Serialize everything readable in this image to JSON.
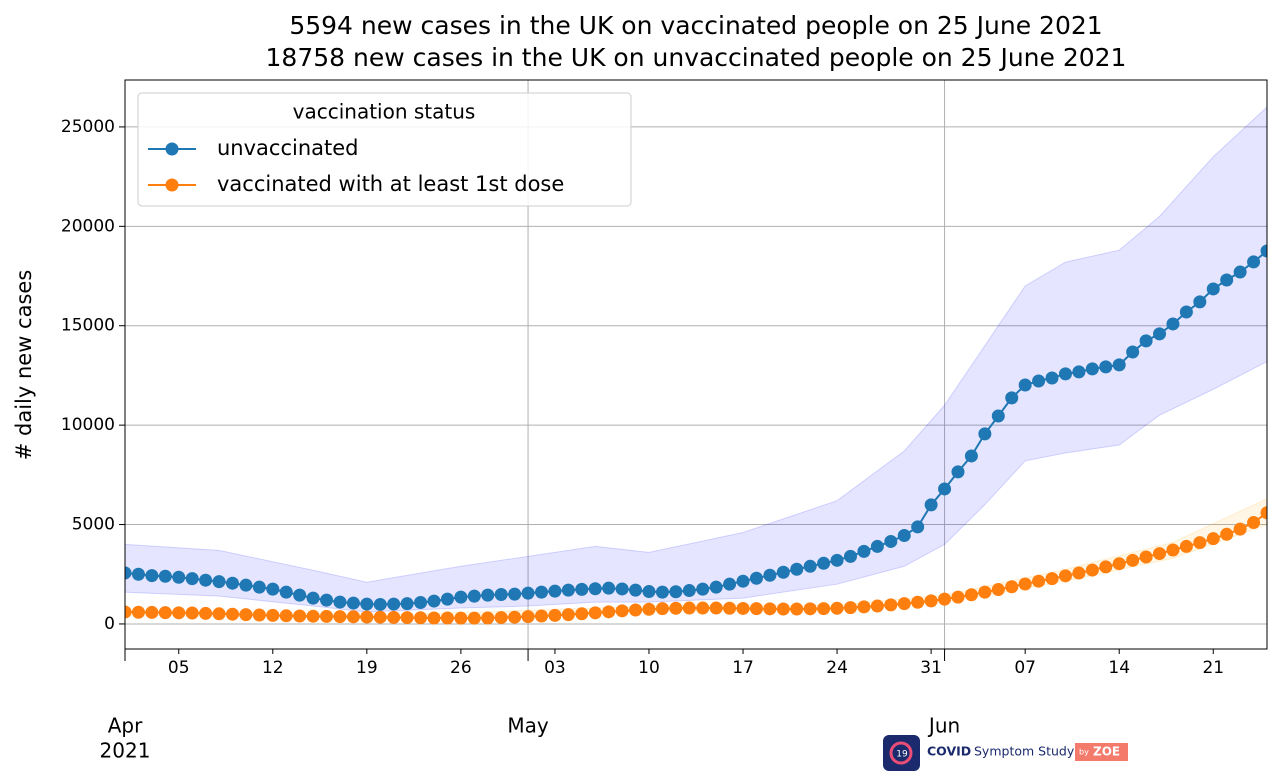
{
  "chart_data": {
    "type": "line",
    "title": [
      "5594 new cases in the UK on vaccinated people on 25 June 2021",
      "18758 new cases in the UK on unvaccinated people on 25 June 2021"
    ],
    "ylabel": "# daily new cases",
    "x": [
      "2021-04-01",
      "2021-04-02",
      "2021-04-03",
      "2021-04-04",
      "2021-04-05",
      "2021-04-06",
      "2021-04-07",
      "2021-04-08",
      "2021-04-09",
      "2021-04-10",
      "2021-04-11",
      "2021-04-12",
      "2021-04-13",
      "2021-04-14",
      "2021-04-15",
      "2021-04-16",
      "2021-04-17",
      "2021-04-18",
      "2021-04-19",
      "2021-04-20",
      "2021-04-21",
      "2021-04-22",
      "2021-04-23",
      "2021-04-24",
      "2021-04-25",
      "2021-04-26",
      "2021-04-27",
      "2021-04-28",
      "2021-04-29",
      "2021-04-30",
      "2021-05-01",
      "2021-05-02",
      "2021-05-03",
      "2021-05-04",
      "2021-05-05",
      "2021-05-06",
      "2021-05-07",
      "2021-05-08",
      "2021-05-09",
      "2021-05-10",
      "2021-05-11",
      "2021-05-12",
      "2021-05-13",
      "2021-05-14",
      "2021-05-15",
      "2021-05-16",
      "2021-05-17",
      "2021-05-18",
      "2021-05-19",
      "2021-05-20",
      "2021-05-21",
      "2021-05-22",
      "2021-05-23",
      "2021-05-24",
      "2021-05-25",
      "2021-05-26",
      "2021-05-27",
      "2021-05-28",
      "2021-05-29",
      "2021-05-30",
      "2021-05-31",
      "2021-06-01",
      "2021-06-02",
      "2021-06-03",
      "2021-06-04",
      "2021-06-05",
      "2021-06-06",
      "2021-06-07",
      "2021-06-08",
      "2021-06-09",
      "2021-06-10",
      "2021-06-11",
      "2021-06-12",
      "2021-06-13",
      "2021-06-14",
      "2021-06-15",
      "2021-06-16",
      "2021-06-17",
      "2021-06-18",
      "2021-06-19",
      "2021-06-20",
      "2021-06-21",
      "2021-06-22",
      "2021-06-23",
      "2021-06-24",
      "2021-06-25"
    ],
    "series": [
      {
        "name": "unvaccinated",
        "color": "#1f77b4",
        "band_color": "#0000ff",
        "values": [
          2565,
          2500,
          2430,
          2400,
          2350,
          2280,
          2200,
          2130,
          2050,
          1950,
          1850,
          1750,
          1600,
          1450,
          1300,
          1200,
          1100,
          1050,
          1000,
          980,
          1000,
          1020,
          1080,
          1150,
          1250,
          1350,
          1400,
          1450,
          1480,
          1500,
          1550,
          1600,
          1650,
          1700,
          1740,
          1770,
          1800,
          1760,
          1700,
          1630,
          1600,
          1620,
          1680,
          1750,
          1850,
          2000,
          2150,
          2300,
          2450,
          2600,
          2750,
          2900,
          3050,
          3200,
          3400,
          3650,
          3900,
          4150,
          4450,
          4880,
          5990,
          6790,
          7650,
          8450,
          9560,
          10460,
          11370,
          12020,
          12220,
          12370,
          12580,
          12680,
          12830,
          12930,
          13030,
          13680,
          14240,
          14590,
          15090,
          15690,
          16200,
          16850,
          17300,
          17700,
          18210,
          18758
        ],
        "band": {
          "x": [
            "2021-04-01",
            "2021-04-08",
            "2021-04-15",
            "2021-04-19",
            "2021-04-26",
            "2021-05-01",
            "2021-05-06",
            "2021-05-10",
            "2021-05-17",
            "2021-05-24",
            "2021-05-29",
            "2021-06-01",
            "2021-06-04",
            "2021-06-07",
            "2021-06-10",
            "2021-06-14",
            "2021-06-17",
            "2021-06-21",
            "2021-06-25"
          ],
          "lower": [
            1600,
            1400,
            900,
            600,
            800,
            900,
            1100,
            1100,
            1300,
            2000,
            2900,
            4000,
            6000,
            8200,
            8600,
            9000,
            10500,
            11800,
            13200
          ],
          "upper": [
            4000,
            3700,
            2700,
            2100,
            2900,
            3400,
            3900,
            3600,
            4600,
            6200,
            8700,
            11000,
            14000,
            17000,
            18200,
            18800,
            20500,
            23500,
            26000
          ]
        }
      },
      {
        "name": "vaccinated with at least 1st dose",
        "color": "#ff7f0e",
        "band_color": "#ffa500",
        "values": [
          600,
          590,
          580,
          570,
          560,
          550,
          530,
          510,
          490,
          470,
          450,
          430,
          410,
          400,
          390,
          380,
          370,
          360,
          350,
          340,
          330,
          320,
          310,
          300,
          300,
          290,
          290,
          300,
          320,
          340,
          370,
          400,
          430,
          470,
          510,
          560,
          610,
          660,
          700,
          740,
          770,
          790,
          800,
          800,
          800,
          790,
          780,
          770,
          760,
          750,
          750,
          760,
          770,
          790,
          820,
          860,
          900,
          960,
          1020,
          1090,
          1160,
          1250,
          1350,
          1470,
          1600,
          1730,
          1870,
          2010,
          2150,
          2280,
          2420,
          2560,
          2710,
          2870,
          3030,
          3200,
          3370,
          3540,
          3720,
          3900,
          4090,
          4290,
          4510,
          4770,
          5100,
          5594
        ],
        "band": {
          "x": [
            "2021-04-01",
            "2021-04-20",
            "2021-05-12",
            "2021-05-24",
            "2021-06-01",
            "2021-06-10",
            "2021-06-18",
            "2021-06-25"
          ],
          "lower": [
            450,
            250,
            650,
            650,
            1100,
            2150,
            3300,
            5000
          ],
          "upper": [
            750,
            430,
            950,
            950,
            1450,
            2750,
            4100,
            6300
          ]
        }
      }
    ],
    "legend_title": "vaccination status",
    "legend": "upper left",
    "xlim": [
      "2021-04-01",
      "2021-06-25"
    ],
    "ylim": [
      -1260,
      27360
    ],
    "yticks": [
      0,
      5000,
      10000,
      15000,
      20000,
      25000
    ],
    "xticks": [
      {
        "value": "2021-04-05",
        "label": "05"
      },
      {
        "value": "2021-04-12",
        "label": "12"
      },
      {
        "value": "2021-04-19",
        "label": "19"
      },
      {
        "value": "2021-04-26",
        "label": "26"
      },
      {
        "value": "2021-05-03",
        "label": "03"
      },
      {
        "value": "2021-05-10",
        "label": "10"
      },
      {
        "value": "2021-05-17",
        "label": "17"
      },
      {
        "value": "2021-05-24",
        "label": "24"
      },
      {
        "value": "2021-05-31",
        "label": "31"
      },
      {
        "value": "2021-06-07",
        "label": "07"
      },
      {
        "value": "2021-06-14",
        "label": "14"
      },
      {
        "value": "2021-06-21",
        "label": "21"
      }
    ],
    "xticks_major": [
      {
        "value": "2021-04-01",
        "label": "Apr"
      },
      {
        "value": "2021-05-01",
        "label": "May"
      },
      {
        "value": "2021-06-01",
        "label": "Jun"
      }
    ],
    "x_year_label": "2021",
    "grid": true,
    "logo": {
      "icon": "19",
      "name_bold": "COVID",
      "name": "Symptom Study",
      "by": "by",
      "brand": "ZOE"
    }
  }
}
